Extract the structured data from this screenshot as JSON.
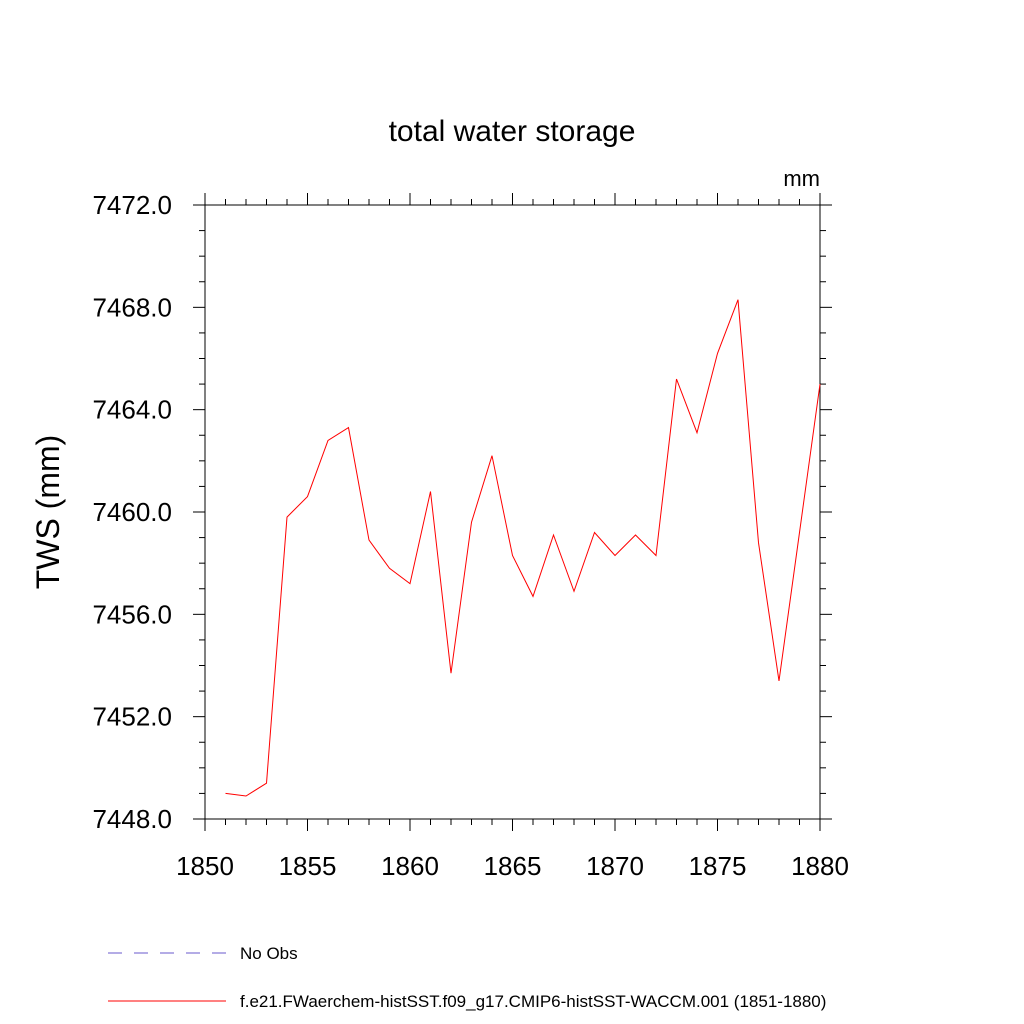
{
  "chart_data": {
    "type": "line",
    "title": "total water storage",
    "units": "mm",
    "xlabel": "",
    "ylabel": "TWS  (mm)",
    "xlim": [
      1850,
      1880
    ],
    "ylim": [
      7448.0,
      7472.0
    ],
    "x_ticks": [
      1850,
      1855,
      1860,
      1865,
      1870,
      1875,
      1880
    ],
    "x_tick_labels": [
      "1850",
      "1855",
      "1860",
      "1865",
      "1870",
      "1875",
      "1880"
    ],
    "y_ticks": [
      7448.0,
      7452.0,
      7456.0,
      7460.0,
      7464.0,
      7468.0,
      7472.0
    ],
    "y_tick_labels": [
      "7448.0",
      "7452.0",
      "7456.0",
      "7460.0",
      "7464.0",
      "7468.0",
      "7472.0"
    ],
    "grid": false,
    "legend_position": "bottom",
    "series": [
      {
        "name": "f.e21.FWaerchem-histSST.f09_g17.CMIP6-histSST-WACCM.001 (1851-1880)",
        "color": "#ff0000",
        "style": "solid",
        "x": [
          1851,
          1852,
          1853,
          1854,
          1855,
          1856,
          1857,
          1858,
          1859,
          1860,
          1861,
          1862,
          1863,
          1864,
          1865,
          1866,
          1867,
          1868,
          1869,
          1870,
          1871,
          1872,
          1873,
          1874,
          1875,
          1876,
          1877,
          1878,
          1879,
          1880
        ],
        "y": [
          7449.0,
          7448.9,
          7449.4,
          7459.8,
          7460.6,
          7462.8,
          7463.3,
          7458.9,
          7457.8,
          7457.2,
          7460.8,
          7453.7,
          7459.6,
          7462.2,
          7458.3,
          7456.7,
          7459.1,
          7456.9,
          7459.2,
          7458.3,
          7459.1,
          7458.3,
          7465.2,
          7463.1,
          7466.2,
          7468.3,
          7458.8,
          7453.4,
          7459.2,
          7465.0
        ]
      }
    ],
    "legend": [
      {
        "label": "No Obs",
        "color": "#6a5acd",
        "style": "dashed"
      },
      {
        "label": "f.e21.FWaerchem-histSST.f09_g17.CMIP6-histSST-WACCM.001 (1851-1880)",
        "color": "#ff0000",
        "style": "solid"
      }
    ]
  }
}
